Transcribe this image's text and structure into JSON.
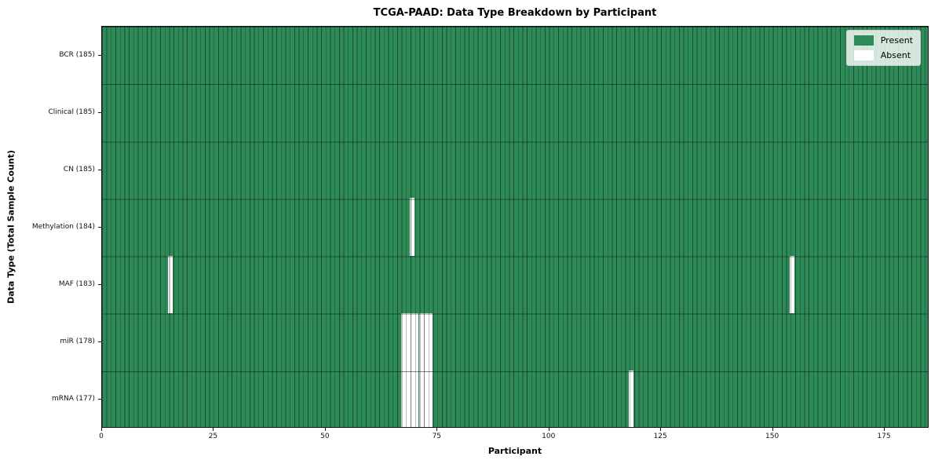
{
  "figure": {
    "title": "TCGA-PAAD: Data Type Breakdown by Participant",
    "xlabel": "Participant",
    "ylabel": "Data Type (Total Sample Count)"
  },
  "legend": {
    "items": [
      {
        "label": "Present",
        "color": "#2e8b57"
      },
      {
        "label": "Absent",
        "color": "#ffffff"
      }
    ]
  },
  "chart_data": {
    "type": "heatmap",
    "title": "TCGA-PAAD: Data Type Breakdown by Participant",
    "xlabel": "Participant",
    "ylabel": "Data Type (Total Sample Count)",
    "legend": [
      "Present",
      "Absent"
    ],
    "legend_position": "upper right",
    "n_participants": 185,
    "x_ticks": [
      0,
      25,
      50,
      75,
      100,
      125,
      150,
      175
    ],
    "xlim": [
      0,
      185
    ],
    "colors": {
      "present": "#2e8b57",
      "absent": "#ffffff"
    },
    "rows": [
      {
        "name": "bcr",
        "label": "BCR (185)",
        "data_type": "BCR",
        "present_count": 185,
        "absent_participants": []
      },
      {
        "name": "clinical",
        "label": "Clinical (185)",
        "data_type": "Clinical",
        "present_count": 185,
        "absent_participants": []
      },
      {
        "name": "cn",
        "label": "CN (185)",
        "data_type": "CN",
        "present_count": 185,
        "absent_participants": []
      },
      {
        "name": "methylation",
        "label": "Methylation (184)",
        "data_type": "Methylation",
        "present_count": 184,
        "absent_participants": [
          69
        ]
      },
      {
        "name": "maf",
        "label": "MAF (183)",
        "data_type": "MAF",
        "present_count": 183,
        "absent_participants": [
          15,
          154
        ]
      },
      {
        "name": "mir",
        "label": "miR (178)",
        "data_type": "miR",
        "present_count": 178,
        "absent_participants": [
          67,
          68,
          69,
          70,
          71,
          72,
          73
        ]
      },
      {
        "name": "mrna",
        "label": "mRNA (177)",
        "data_type": "mRNA",
        "present_count": 177,
        "absent_participants": [
          67,
          68,
          69,
          70,
          71,
          72,
          73,
          118
        ]
      }
    ]
  }
}
